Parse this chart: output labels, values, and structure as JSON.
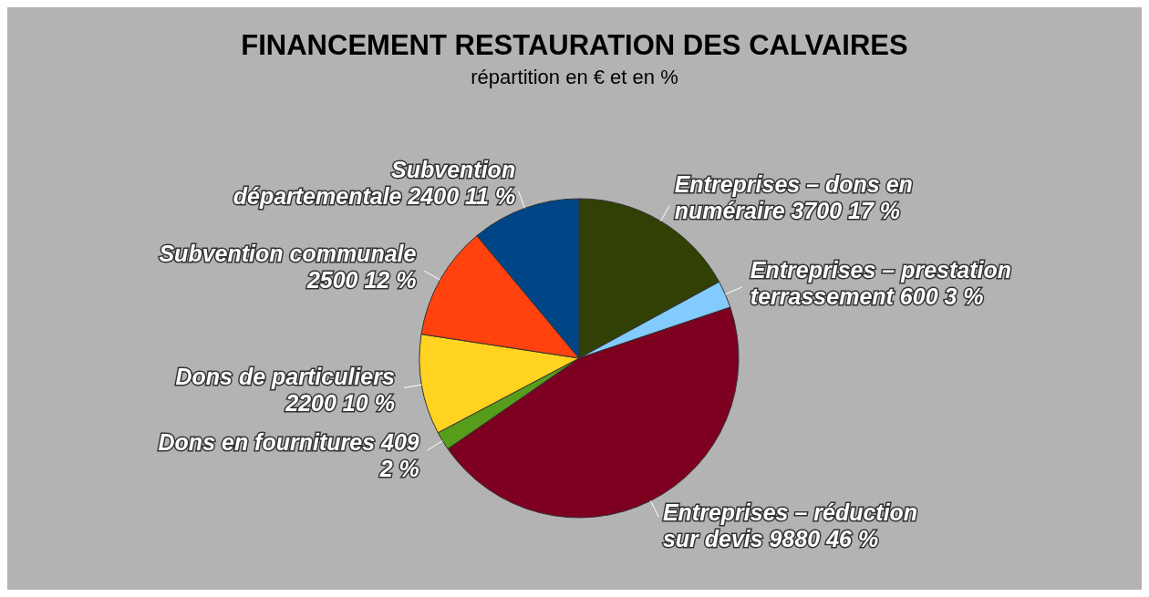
{
  "chart_data": {
    "type": "pie",
    "title": "FINANCEMENT RESTAURATION DES CALVAIRES",
    "subtitle": "répartition en € et en %",
    "categories": [
      "Entreprises – dons en numéraire",
      "Entreprises – prestation terrassement",
      "Entreprises – réduction sur devis",
      "Dons en fournitures",
      "Dons de particuliers",
      "Subvention communale",
      "Subvention départementale"
    ],
    "values": [
      3700,
      600,
      9880,
      409,
      2200,
      2500,
      2400
    ],
    "colors": [
      "#314004",
      "#83caff",
      "#7e0021",
      "#579d1c",
      "#ffd320",
      "#ff420e",
      "#004586"
    ],
    "value_labels": [
      "3700 17 %",
      "600 3 %",
      "9880 46 %",
      "409 2 %",
      "2200 10 %",
      "2500 12 %",
      "2400 11 %"
    ]
  }
}
